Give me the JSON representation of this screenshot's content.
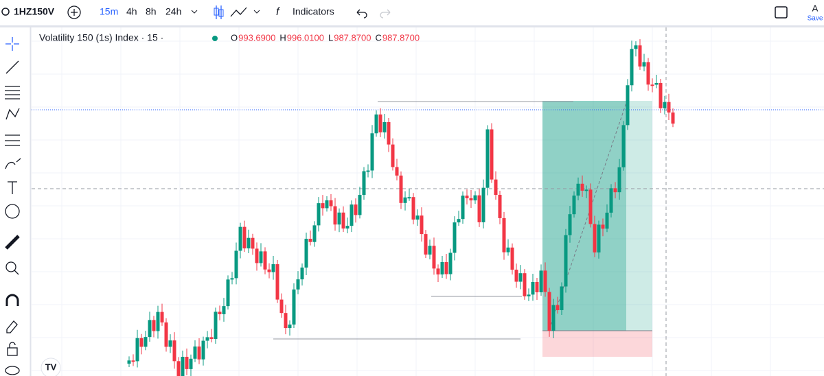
{
  "toolbar": {
    "symbol": "1HZ150V",
    "intervals": [
      "15m",
      "4h",
      "8h",
      "24h"
    ],
    "indicators": "Indicators",
    "account": "A",
    "save": "Save"
  },
  "legend": {
    "title": "Volatility 150 (1s) Index · 15 ·",
    "ohlc": [
      {
        "label": "O",
        "value": "993.6900"
      },
      {
        "label": "H",
        "value": "996.0100"
      },
      {
        "label": "L",
        "value": "987.8700"
      },
      {
        "label": "C",
        "value": "987.8700"
      }
    ]
  }
}
